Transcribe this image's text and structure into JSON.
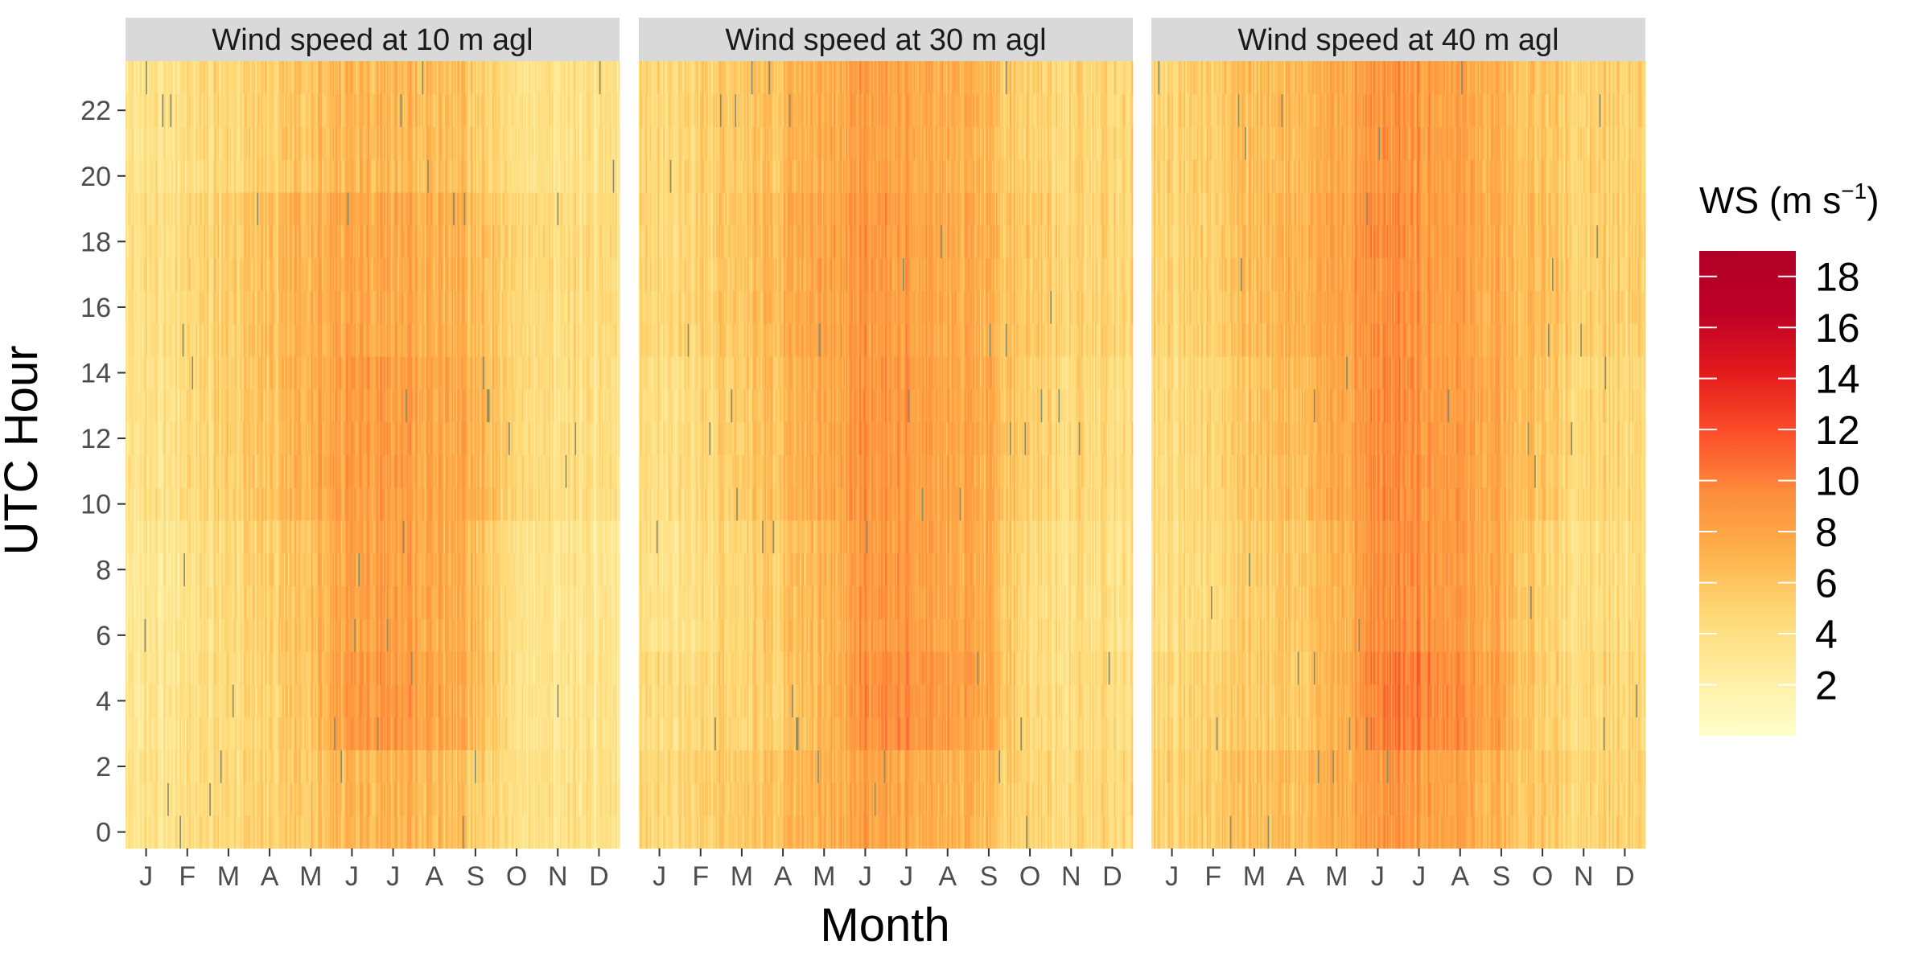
{
  "chart_data": {
    "type": "heatmap",
    "xlabel": "Month",
    "ylabel": "UTC Hour",
    "x_ticks": [
      "J",
      "F",
      "M",
      "A",
      "M",
      "J",
      "J",
      "A",
      "S",
      "O",
      "N",
      "D"
    ],
    "y_ticks": [
      0,
      2,
      4,
      6,
      8,
      10,
      12,
      14,
      16,
      18,
      20,
      22
    ],
    "ylim": [
      0,
      23
    ],
    "legend": {
      "title": "WS (m s",
      "title_sup": "−1",
      "title_close": ")",
      "ticks": [
        2,
        4,
        6,
        8,
        10,
        12,
        14,
        16,
        18
      ],
      "range": [
        0,
        19
      ],
      "colors": [
        "#ffffcc",
        "#ffeda0",
        "#fed976",
        "#feb24c",
        "#fd8d3c",
        "#fc4e2a",
        "#e31a1c",
        "#bd0026",
        "#b10026"
      ]
    },
    "facets": [
      {
        "title": "Wind speed at 10 m agl",
        "monthly_mean_by_hour_band": {
          "hour_bands": [
            "0-2",
            "3-5",
            "6-9",
            "10-14",
            "15-19",
            "20-23"
          ],
          "months": [
            "J",
            "F",
            "M",
            "A",
            "M",
            "J",
            "J",
            "A",
            "S",
            "O",
            "N",
            "D"
          ],
          "values": [
            [
              3.5,
              3.8,
              4.5,
              5.0,
              5.8,
              7.0,
              7.2,
              6.5,
              5.5,
              4.0,
              3.8,
              3.4
            ],
            [
              3.2,
              3.6,
              4.3,
              5.0,
              6.0,
              8.8,
              8.8,
              7.8,
              6.8,
              3.8,
              3.5,
              3.2
            ],
            [
              3.0,
              3.4,
              4.5,
              5.3,
              6.3,
              8.3,
              8.3,
              7.5,
              6.6,
              3.9,
              3.5,
              3.0
            ],
            [
              3.6,
              4.0,
              5.2,
              6.2,
              7.2,
              8.6,
              8.4,
              7.7,
              7.2,
              5.0,
              4.2,
              3.7
            ],
            [
              3.9,
              4.3,
              5.3,
              6.3,
              7.1,
              8.0,
              7.8,
              7.2,
              6.5,
              5.0,
              4.4,
              4.0
            ],
            [
              3.5,
              3.9,
              4.6,
              5.4,
              6.0,
              7.1,
              6.9,
              6.3,
              5.6,
              4.1,
              3.8,
              3.5
            ]
          ]
        }
      },
      {
        "title": "Wind speed at 30 m agl",
        "monthly_mean_by_hour_band": {
          "hour_bands": [
            "0-2",
            "3-5",
            "6-9",
            "10-14",
            "15-19",
            "20-23"
          ],
          "months": [
            "J",
            "F",
            "M",
            "A",
            "M",
            "J",
            "J",
            "A",
            "S",
            "O",
            "N",
            "D"
          ],
          "values": [
            [
              4.8,
              5.0,
              5.8,
              6.3,
              7.0,
              8.2,
              8.0,
              7.4,
              6.4,
              4.8,
              4.6,
              4.5
            ],
            [
              4.3,
              4.5,
              5.0,
              5.5,
              6.6,
              9.3,
              9.5,
              8.6,
              7.6,
              4.3,
              4.2,
              4.2
            ],
            [
              3.8,
              4.0,
              5.0,
              5.8,
              6.6,
              8.8,
              8.8,
              8.0,
              7.2,
              4.2,
              4.0,
              3.8
            ],
            [
              4.2,
              4.5,
              5.6,
              6.6,
              7.5,
              9.0,
              8.7,
              8.1,
              7.3,
              5.2,
              4.6,
              4.2
            ],
            [
              4.8,
              5.0,
              6.0,
              7.0,
              7.8,
              8.8,
              8.5,
              7.8,
              7.0,
              5.6,
              5.0,
              4.8
            ],
            [
              4.8,
              5.0,
              5.8,
              6.5,
              7.2,
              8.4,
              8.2,
              7.5,
              6.6,
              5.0,
              4.8,
              4.6
            ]
          ]
        }
      },
      {
        "title": "Wind speed at 40 m agl",
        "monthly_mean_by_hour_band": {
          "hour_bands": [
            "0-2",
            "3-5",
            "6-9",
            "10-14",
            "15-19",
            "20-23"
          ],
          "months": [
            "J",
            "F",
            "M",
            "A",
            "M",
            "J",
            "J",
            "A",
            "S",
            "O",
            "N",
            "D"
          ],
          "values": [
            [
              5.2,
              5.4,
              6.2,
              6.6,
              7.4,
              8.6,
              8.4,
              7.8,
              6.8,
              5.2,
              5.0,
              4.9
            ],
            [
              4.8,
              5.0,
              5.4,
              5.9,
              7.0,
              9.8,
              9.9,
              9.0,
              8.0,
              4.7,
              4.6,
              4.6
            ],
            [
              4.2,
              4.4,
              5.3,
              6.1,
              6.9,
              9.1,
              9.1,
              8.3,
              7.4,
              4.5,
              4.3,
              4.1
            ],
            [
              4.5,
              4.8,
              5.8,
              6.8,
              7.7,
              9.2,
              8.9,
              8.3,
              7.5,
              5.4,
              4.9,
              4.5
            ],
            [
              5.1,
              5.3,
              6.3,
              7.3,
              8.1,
              9.1,
              8.8,
              8.1,
              7.3,
              5.9,
              5.3,
              5.1
            ],
            [
              5.2,
              5.4,
              6.2,
              6.9,
              7.6,
              8.8,
              8.6,
              7.9,
              7.0,
              5.4,
              5.2,
              5.0
            ]
          ]
        }
      }
    ]
  }
}
